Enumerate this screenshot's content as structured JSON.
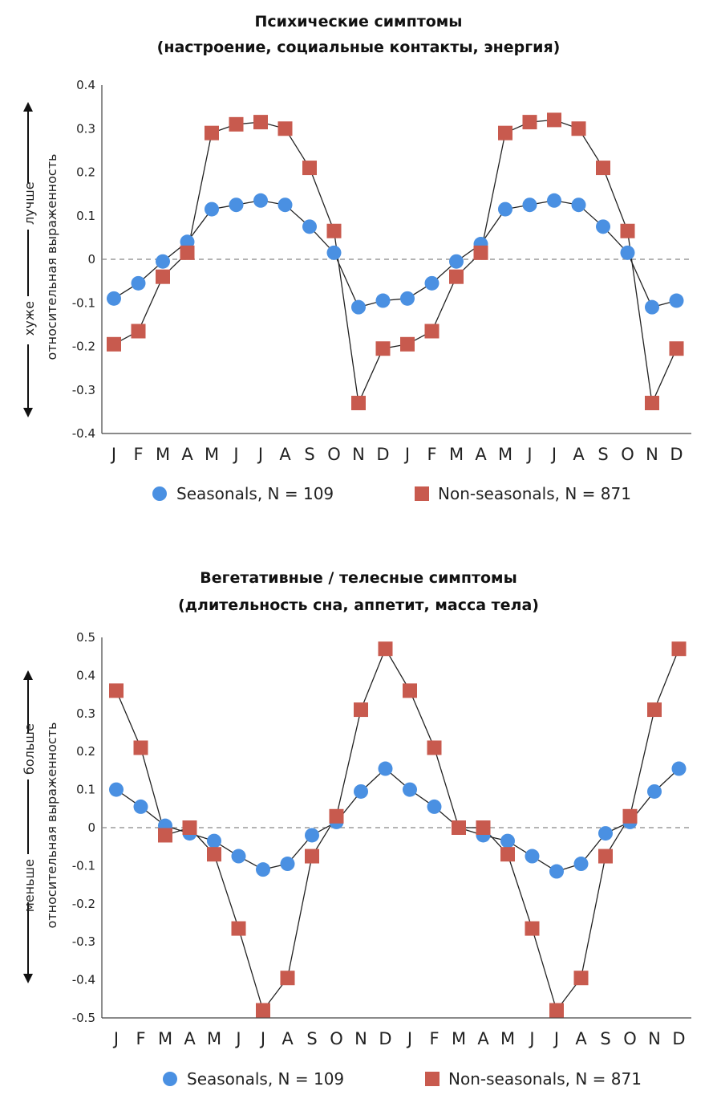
{
  "chart_data": [
    {
      "type": "line",
      "title": "Психические симптомы",
      "subtitle": "(настроение, социальные контакты, энергия)",
      "ylabel": "относительная выраженность",
      "y_up_label": "лучше",
      "y_down_label": "хуже",
      "ylim": [
        -0.4,
        0.4
      ],
      "yticks": [
        "0.4",
        "0.3",
        "0.2",
        "0.1",
        "0",
        "-0.1",
        "-0.2",
        "-0.3",
        "-0.4"
      ],
      "categories": [
        "J",
        "F",
        "M",
        "A",
        "M",
        "J",
        "J",
        "A",
        "S",
        "O",
        "N",
        "D",
        "J",
        "F",
        "M",
        "A",
        "M",
        "J",
        "J",
        "A",
        "S",
        "O",
        "N",
        "D"
      ],
      "zero_line": "dashed",
      "legend_position": "bottom",
      "series": [
        {
          "name": "Seasonals, N = 109",
          "marker": "circle",
          "color": "#4a90e2",
          "values": [
            -0.09,
            -0.055,
            -0.005,
            0.04,
            0.115,
            0.125,
            0.135,
            0.125,
            0.075,
            0.015,
            -0.11,
            -0.095,
            -0.09,
            -0.055,
            -0.005,
            0.035,
            0.115,
            0.125,
            0.135,
            0.125,
            0.075,
            0.015,
            -0.11,
            -0.095
          ]
        },
        {
          "name": "Non-seasonals, N = 871",
          "marker": "square",
          "color": "#c85a4e",
          "values": [
            -0.195,
            -0.165,
            -0.04,
            0.015,
            0.29,
            0.31,
            0.315,
            0.3,
            0.21,
            0.065,
            -0.33,
            -0.205,
            -0.195,
            -0.165,
            -0.04,
            0.015,
            0.29,
            0.315,
            0.32,
            0.3,
            0.21,
            0.065,
            -0.33,
            -0.205
          ]
        }
      ]
    },
    {
      "type": "line",
      "title": "Вегетативные / телесные симптомы",
      "subtitle": "(длительность сна, аппетит, масса тела)",
      "ylabel": "относительная выраженность",
      "y_up_label": "больше",
      "y_down_label": "меньше",
      "ylim": [
        -0.5,
        0.5
      ],
      "yticks": [
        "0.5",
        "0.4",
        "0.3",
        "0.2",
        "0.1",
        "0",
        "-0.1",
        "-0.2",
        "-0.3",
        "-0.4",
        "-0.5"
      ],
      "categories": [
        "J",
        "F",
        "M",
        "A",
        "M",
        "J",
        "J",
        "A",
        "S",
        "O",
        "N",
        "D",
        "J",
        "F",
        "M",
        "A",
        "M",
        "J",
        "J",
        "A",
        "S",
        "O",
        "N",
        "D"
      ],
      "zero_line": "dashed",
      "legend_position": "bottom",
      "series": [
        {
          "name": "Seasonals, N = 109",
          "marker": "circle",
          "color": "#4a90e2",
          "values": [
            0.1,
            0.055,
            0.005,
            -0.015,
            -0.035,
            -0.075,
            -0.11,
            -0.095,
            -0.02,
            0.015,
            0.095,
            0.155,
            0.1,
            0.055,
            0.0,
            -0.02,
            -0.035,
            -0.075,
            -0.115,
            -0.095,
            -0.015,
            0.015,
            0.095,
            0.155
          ]
        },
        {
          "name": "Non-seasonals, N = 871",
          "marker": "square",
          "color": "#c85a4e",
          "values": [
            0.36,
            0.21,
            -0.02,
            0.0,
            -0.07,
            -0.265,
            -0.48,
            -0.395,
            -0.075,
            0.03,
            0.31,
            0.47,
            0.36,
            0.21,
            0.0,
            0.0,
            -0.07,
            -0.265,
            -0.48,
            -0.395,
            -0.075,
            0.03,
            0.31,
            0.47
          ]
        }
      ]
    }
  ]
}
